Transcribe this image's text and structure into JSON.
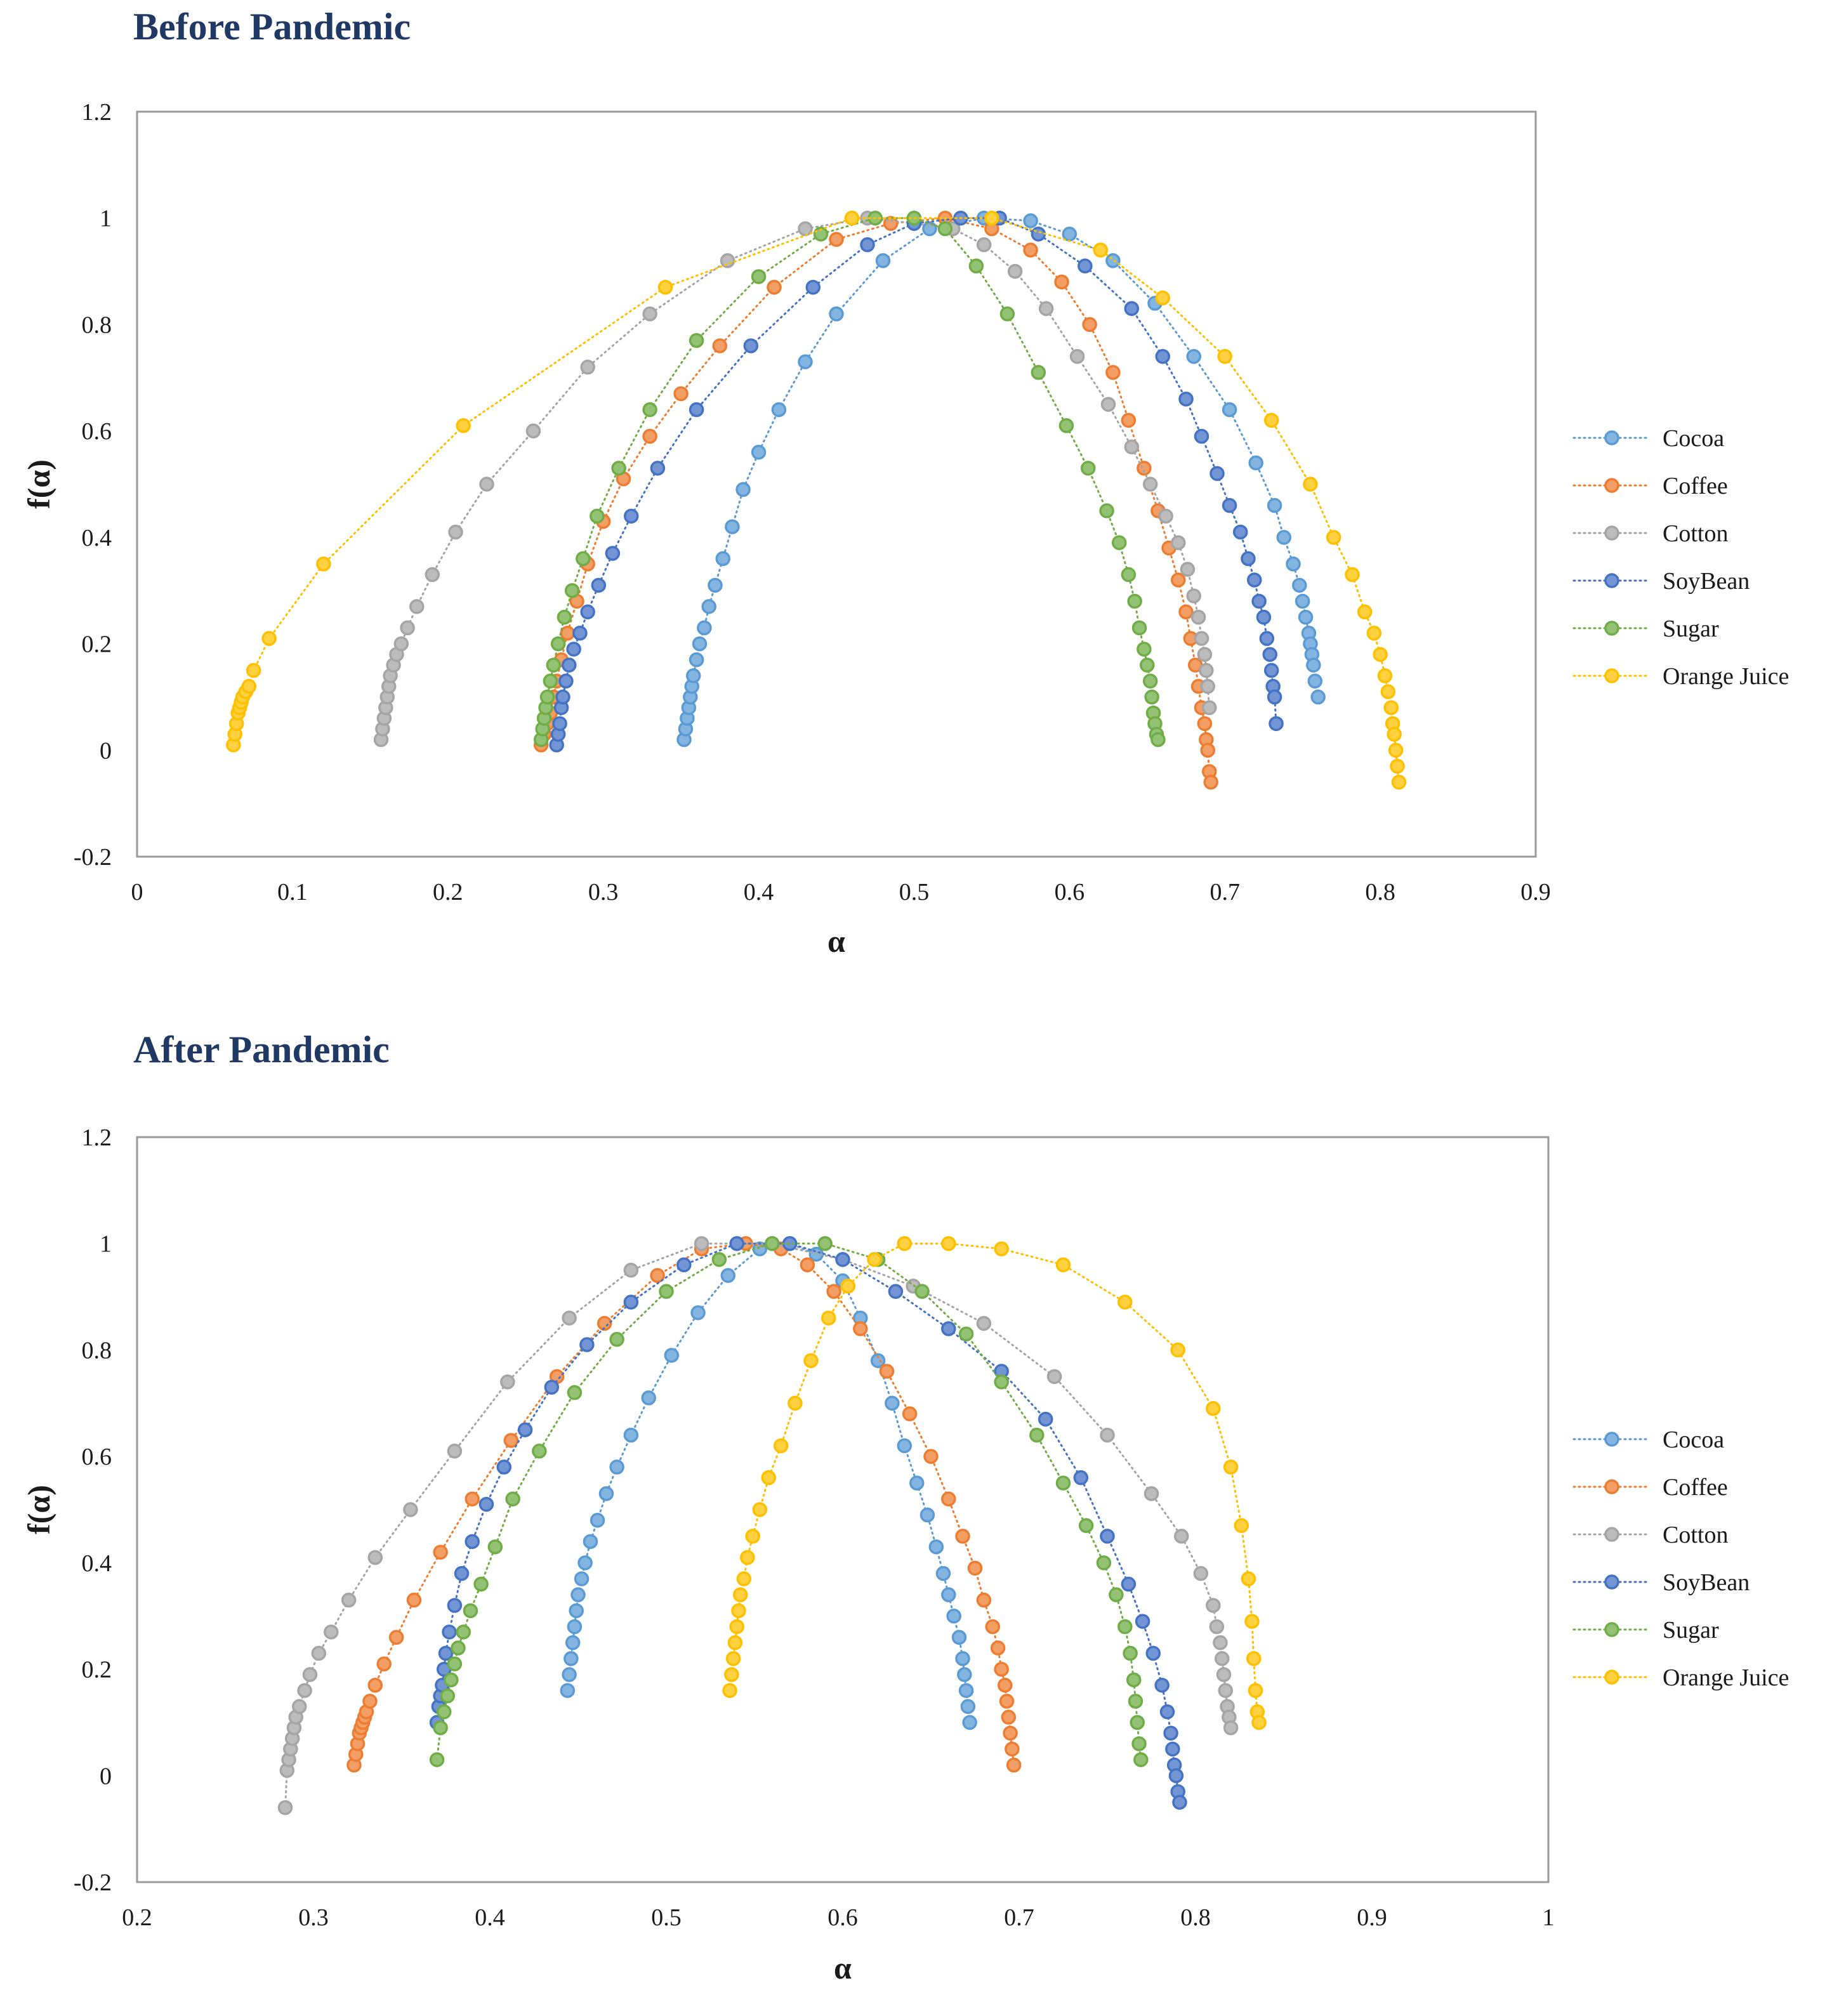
{
  "colors": {
    "Cocoa": "#5b9bd5",
    "Coffee": "#ed7d31",
    "Cotton": "#a5a5a5",
    "SoyBean": "#4472c4",
    "Sugar": "#70ad47",
    "Orange Juice": "#ffc000",
    "title": "#1f3864",
    "frame": "#9a9a9a"
  },
  "chart_data": [
    {
      "type": "scatter",
      "title": "Before Pandemic",
      "xlabel": "α",
      "ylabel": "f(α)",
      "xlim": [
        0,
        0.9
      ],
      "ylim": [
        -0.2,
        1.2
      ],
      "xticks": [
        "0",
        "0.1",
        "0.2",
        "0.3",
        "0.4",
        "0.5",
        "0.6",
        "0.7",
        "0.8",
        "0.9"
      ],
      "yticks": [
        "-0.2",
        "0",
        "0.2",
        "0.4",
        "0.6",
        "0.8",
        "1",
        "1.2"
      ],
      "grid": false,
      "legend": "right",
      "series": [
        {
          "name": "Cocoa",
          "x": [
            0.352,
            0.353,
            0.354,
            0.355,
            0.356,
            0.357,
            0.358,
            0.36,
            0.362,
            0.365,
            0.368,
            0.372,
            0.377,
            0.383,
            0.39,
            0.4,
            0.413,
            0.43,
            0.45,
            0.48,
            0.51,
            0.545,
            0.575,
            0.6,
            0.628,
            0.655,
            0.68,
            0.703,
            0.72,
            0.732,
            0.738,
            0.744,
            0.748,
            0.75,
            0.752,
            0.754,
            0.755,
            0.756,
            0.757,
            0.758,
            0.76
          ],
          "y": [
            0.02,
            0.04,
            0.06,
            0.08,
            0.1,
            0.12,
            0.14,
            0.17,
            0.2,
            0.23,
            0.27,
            0.31,
            0.36,
            0.42,
            0.49,
            0.56,
            0.64,
            0.73,
            0.82,
            0.92,
            0.98,
            1.0,
            0.995,
            0.97,
            0.92,
            0.84,
            0.74,
            0.64,
            0.54,
            0.46,
            0.4,
            0.35,
            0.31,
            0.28,
            0.25,
            0.22,
            0.2,
            0.18,
            0.16,
            0.13,
            0.1
          ]
        },
        {
          "name": "Coffee",
          "x": [
            0.26,
            0.262,
            0.264,
            0.266,
            0.268,
            0.27,
            0.273,
            0.277,
            0.283,
            0.29,
            0.3,
            0.313,
            0.33,
            0.35,
            0.375,
            0.41,
            0.45,
            0.485,
            0.52,
            0.55,
            0.575,
            0.595,
            0.613,
            0.628,
            0.638,
            0.648,
            0.657,
            0.664,
            0.67,
            0.675,
            0.678,
            0.681,
            0.683,
            0.685,
            0.687,
            0.688,
            0.689,
            0.69,
            0.691
          ],
          "y": [
            0.01,
            0.03,
            0.05,
            0.07,
            0.1,
            0.13,
            0.17,
            0.22,
            0.28,
            0.35,
            0.43,
            0.51,
            0.59,
            0.67,
            0.76,
            0.87,
            0.96,
            0.99,
            1.0,
            0.98,
            0.94,
            0.88,
            0.8,
            0.71,
            0.62,
            0.53,
            0.45,
            0.38,
            0.32,
            0.26,
            0.21,
            0.16,
            0.12,
            0.08,
            0.05,
            0.02,
            0.0,
            -0.04,
            -0.06
          ]
        },
        {
          "name": "Cotton",
          "x": [
            0.157,
            0.158,
            0.159,
            0.16,
            0.161,
            0.162,
            0.163,
            0.165,
            0.167,
            0.17,
            0.174,
            0.18,
            0.19,
            0.205,
            0.225,
            0.255,
            0.29,
            0.33,
            0.38,
            0.43,
            0.47,
            0.5,
            0.525,
            0.545,
            0.565,
            0.585,
            0.605,
            0.625,
            0.64,
            0.652,
            0.662,
            0.67,
            0.676,
            0.68,
            0.683,
            0.685,
            0.687,
            0.688,
            0.689,
            0.69
          ],
          "y": [
            0.02,
            0.04,
            0.06,
            0.08,
            0.1,
            0.12,
            0.14,
            0.16,
            0.18,
            0.2,
            0.23,
            0.27,
            0.33,
            0.41,
            0.5,
            0.6,
            0.72,
            0.82,
            0.92,
            0.98,
            1.0,
            0.99,
            0.98,
            0.95,
            0.9,
            0.83,
            0.74,
            0.65,
            0.57,
            0.5,
            0.44,
            0.39,
            0.34,
            0.29,
            0.25,
            0.21,
            0.18,
            0.15,
            0.12,
            0.08
          ]
        },
        {
          "name": "SoyBean",
          "x": [
            0.27,
            0.271,
            0.272,
            0.273,
            0.274,
            0.276,
            0.278,
            0.281,
            0.285,
            0.29,
            0.297,
            0.306,
            0.318,
            0.335,
            0.36,
            0.395,
            0.435,
            0.47,
            0.5,
            0.53,
            0.555,
            0.58,
            0.61,
            0.64,
            0.66,
            0.675,
            0.685,
            0.695,
            0.703,
            0.71,
            0.715,
            0.719,
            0.722,
            0.725,
            0.727,
            0.729,
            0.73,
            0.731,
            0.732,
            0.733
          ],
          "y": [
            0.01,
            0.03,
            0.05,
            0.08,
            0.1,
            0.13,
            0.16,
            0.19,
            0.22,
            0.26,
            0.31,
            0.37,
            0.44,
            0.53,
            0.64,
            0.76,
            0.87,
            0.95,
            0.99,
            1.0,
            1.0,
            0.97,
            0.91,
            0.83,
            0.74,
            0.66,
            0.59,
            0.52,
            0.46,
            0.41,
            0.36,
            0.32,
            0.28,
            0.25,
            0.21,
            0.18,
            0.15,
            0.12,
            0.1,
            0.05
          ]
        },
        {
          "name": "Sugar",
          "x": [
            0.26,
            0.261,
            0.262,
            0.263,
            0.264,
            0.266,
            0.268,
            0.271,
            0.275,
            0.28,
            0.287,
            0.296,
            0.31,
            0.33,
            0.36,
            0.4,
            0.44,
            0.475,
            0.5,
            0.52,
            0.54,
            0.56,
            0.58,
            0.598,
            0.612,
            0.624,
            0.632,
            0.638,
            0.642,
            0.645,
            0.648,
            0.65,
            0.652,
            0.653,
            0.654,
            0.655,
            0.656,
            0.657
          ],
          "y": [
            0.02,
            0.04,
            0.06,
            0.08,
            0.1,
            0.13,
            0.16,
            0.2,
            0.25,
            0.3,
            0.36,
            0.44,
            0.53,
            0.64,
            0.77,
            0.89,
            0.97,
            1.0,
            1.0,
            0.98,
            0.91,
            0.82,
            0.71,
            0.61,
            0.53,
            0.45,
            0.39,
            0.33,
            0.28,
            0.23,
            0.19,
            0.16,
            0.13,
            0.1,
            0.07,
            0.05,
            0.03,
            0.02
          ]
        },
        {
          "name": "Orange Juice",
          "x": [
            0.062,
            0.063,
            0.064,
            0.065,
            0.066,
            0.067,
            0.068,
            0.07,
            0.072,
            0.075,
            0.085,
            0.12,
            0.21,
            0.34,
            0.46,
            0.55,
            0.62,
            0.66,
            0.7,
            0.73,
            0.755,
            0.77,
            0.782,
            0.79,
            0.796,
            0.8,
            0.803,
            0.805,
            0.807,
            0.808,
            0.809,
            0.81,
            0.811,
            0.812
          ],
          "y": [
            0.01,
            0.03,
            0.05,
            0.07,
            0.08,
            0.09,
            0.1,
            0.11,
            0.12,
            0.15,
            0.21,
            0.35,
            0.61,
            0.87,
            1.0,
            1.0,
            0.94,
            0.85,
            0.74,
            0.62,
            0.5,
            0.4,
            0.33,
            0.26,
            0.22,
            0.18,
            0.14,
            0.11,
            0.08,
            0.05,
            0.03,
            0.0,
            -0.03,
            -0.06
          ]
        }
      ]
    },
    {
      "type": "scatter",
      "title": "After Pandemic",
      "xlabel": "α",
      "ylabel": "f(α)",
      "xlim": [
        0.2,
        1.0
      ],
      "ylim": [
        -0.2,
        1.2
      ],
      "xticks": [
        "0.2",
        "0.3",
        "0.4",
        "0.5",
        "0.6",
        "0.7",
        "0.8",
        "0.9",
        "1"
      ],
      "yticks": [
        "-0.2",
        "0",
        "0.2",
        "0.4",
        "0.6",
        "0.8",
        "1",
        "1.2"
      ],
      "grid": false,
      "legend": "right",
      "series": [
        {
          "name": "Cocoa",
          "x": [
            0.444,
            0.445,
            0.446,
            0.447,
            0.448,
            0.449,
            0.45,
            0.452,
            0.454,
            0.457,
            0.461,
            0.466,
            0.472,
            0.48,
            0.49,
            0.503,
            0.518,
            0.535,
            0.553,
            0.57,
            0.585,
            0.6,
            0.61,
            0.62,
            0.628,
            0.635,
            0.642,
            0.648,
            0.653,
            0.657,
            0.66,
            0.663,
            0.666,
            0.668,
            0.669,
            0.67,
            0.671,
            0.672
          ],
          "y": [
            0.16,
            0.19,
            0.22,
            0.25,
            0.28,
            0.31,
            0.34,
            0.37,
            0.4,
            0.44,
            0.48,
            0.53,
            0.58,
            0.64,
            0.71,
            0.79,
            0.87,
            0.94,
            0.99,
            1.0,
            0.98,
            0.93,
            0.86,
            0.78,
            0.7,
            0.62,
            0.55,
            0.49,
            0.43,
            0.38,
            0.34,
            0.3,
            0.26,
            0.22,
            0.19,
            0.16,
            0.13,
            0.1
          ]
        },
        {
          "name": "Coffee",
          "x": [
            0.323,
            0.324,
            0.325,
            0.326,
            0.327,
            0.328,
            0.329,
            0.33,
            0.332,
            0.335,
            0.34,
            0.347,
            0.357,
            0.372,
            0.39,
            0.412,
            0.438,
            0.465,
            0.495,
            0.52,
            0.545,
            0.565,
            0.58,
            0.595,
            0.61,
            0.625,
            0.638,
            0.65,
            0.66,
            0.668,
            0.675,
            0.68,
            0.685,
            0.688,
            0.69,
            0.692,
            0.693,
            0.694,
            0.695,
            0.696,
            0.697
          ],
          "y": [
            0.02,
            0.04,
            0.06,
            0.08,
            0.09,
            0.1,
            0.11,
            0.12,
            0.14,
            0.17,
            0.21,
            0.26,
            0.33,
            0.42,
            0.52,
            0.63,
            0.75,
            0.85,
            0.94,
            0.99,
            1.0,
            0.99,
            0.96,
            0.91,
            0.84,
            0.76,
            0.68,
            0.6,
            0.52,
            0.45,
            0.39,
            0.33,
            0.28,
            0.24,
            0.2,
            0.17,
            0.14,
            0.11,
            0.08,
            0.05,
            0.02
          ]
        },
        {
          "name": "Cotton",
          "x": [
            0.284,
            0.285,
            0.286,
            0.287,
            0.288,
            0.289,
            0.29,
            0.292,
            0.295,
            0.298,
            0.303,
            0.31,
            0.32,
            0.335,
            0.355,
            0.38,
            0.41,
            0.445,
            0.48,
            0.52,
            0.56,
            0.6,
            0.64,
            0.68,
            0.72,
            0.75,
            0.775,
            0.792,
            0.803,
            0.81,
            0.812,
            0.814,
            0.815,
            0.816,
            0.817,
            0.818,
            0.819,
            0.82
          ],
          "y": [
            -0.06,
            0.01,
            0.03,
            0.05,
            0.07,
            0.09,
            0.11,
            0.13,
            0.16,
            0.19,
            0.23,
            0.27,
            0.33,
            0.41,
            0.5,
            0.61,
            0.74,
            0.86,
            0.95,
            1.0,
            1.0,
            0.97,
            0.92,
            0.85,
            0.75,
            0.64,
            0.53,
            0.45,
            0.38,
            0.32,
            0.28,
            0.25,
            0.22,
            0.19,
            0.16,
            0.13,
            0.11,
            0.09
          ]
        },
        {
          "name": "SoyBean",
          "x": [
            0.37,
            0.371,
            0.372,
            0.373,
            0.374,
            0.375,
            0.377,
            0.38,
            0.384,
            0.39,
            0.398,
            0.408,
            0.42,
            0.435,
            0.455,
            0.48,
            0.51,
            0.54,
            0.57,
            0.6,
            0.63,
            0.66,
            0.69,
            0.715,
            0.735,
            0.75,
            0.762,
            0.77,
            0.776,
            0.781,
            0.784,
            0.786,
            0.787,
            0.788,
            0.789,
            0.79,
            0.791
          ],
          "y": [
            0.1,
            0.13,
            0.15,
            0.17,
            0.2,
            0.23,
            0.27,
            0.32,
            0.38,
            0.44,
            0.51,
            0.58,
            0.65,
            0.73,
            0.81,
            0.89,
            0.96,
            1.0,
            1.0,
            0.97,
            0.91,
            0.84,
            0.76,
            0.67,
            0.56,
            0.45,
            0.36,
            0.29,
            0.23,
            0.17,
            0.12,
            0.08,
            0.05,
            0.02,
            0.0,
            -0.03,
            -0.05
          ]
        },
        {
          "name": "Sugar",
          "x": [
            0.37,
            0.372,
            0.374,
            0.376,
            0.378,
            0.38,
            0.382,
            0.385,
            0.389,
            0.395,
            0.403,
            0.413,
            0.428,
            0.448,
            0.472,
            0.5,
            0.53,
            0.56,
            0.59,
            0.62,
            0.645,
            0.67,
            0.69,
            0.71,
            0.725,
            0.738,
            0.748,
            0.755,
            0.76,
            0.763,
            0.765,
            0.766,
            0.767,
            0.768,
            0.769
          ],
          "y": [
            0.03,
            0.09,
            0.12,
            0.15,
            0.18,
            0.21,
            0.24,
            0.27,
            0.31,
            0.36,
            0.43,
            0.52,
            0.61,
            0.72,
            0.82,
            0.91,
            0.97,
            1.0,
            1.0,
            0.97,
            0.91,
            0.83,
            0.74,
            0.64,
            0.55,
            0.47,
            0.4,
            0.34,
            0.28,
            0.23,
            0.18,
            0.14,
            0.1,
            0.06,
            0.03
          ]
        },
        {
          "name": "Orange Juice",
          "x": [
            0.536,
            0.537,
            0.538,
            0.539,
            0.54,
            0.541,
            0.542,
            0.544,
            0.546,
            0.549,
            0.553,
            0.558,
            0.565,
            0.573,
            0.582,
            0.592,
            0.603,
            0.618,
            0.635,
            0.66,
            0.69,
            0.725,
            0.76,
            0.79,
            0.81,
            0.82,
            0.826,
            0.83,
            0.832,
            0.833,
            0.834,
            0.835,
            0.836
          ],
          "y": [
            0.16,
            0.19,
            0.22,
            0.25,
            0.28,
            0.31,
            0.34,
            0.37,
            0.41,
            0.45,
            0.5,
            0.56,
            0.62,
            0.7,
            0.78,
            0.86,
            0.92,
            0.97,
            1.0,
            1.0,
            0.99,
            0.96,
            0.89,
            0.8,
            0.69,
            0.58,
            0.47,
            0.37,
            0.29,
            0.22,
            0.16,
            0.12,
            0.1
          ]
        }
      ]
    }
  ],
  "legend_labels": [
    "Cocoa",
    "Coffee",
    "Cotton",
    "SoyBean",
    "Sugar",
    "Orange Juice"
  ]
}
